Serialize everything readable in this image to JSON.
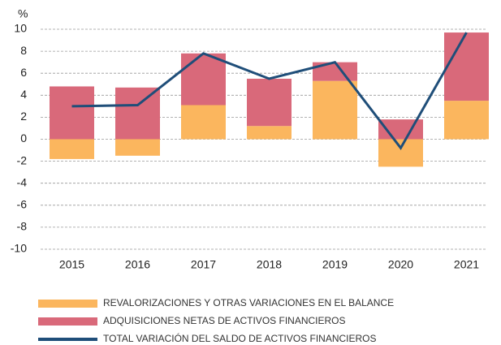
{
  "chart_data": {
    "type": "bar",
    "stacked": true,
    "y_unit": "%",
    "categories": [
      "2015",
      "2016",
      "2017",
      "2018",
      "2019",
      "2020",
      "2021"
    ],
    "series": [
      {
        "name": "REVALORIZACIONES Y OTRAS VARIACIONES EN EL BALANCE",
        "color": "#fbb65e",
        "type": "bar",
        "values": [
          -1.8,
          -1.5,
          3.1,
          1.2,
          5.3,
          -2.5,
          3.5
        ]
      },
      {
        "name": "ADQUISICIONES NETAS DE ACTIVOS FINANCIEROS",
        "color": "#d9697a",
        "type": "bar",
        "values": [
          4.8,
          4.7,
          4.7,
          4.3,
          1.7,
          1.8,
          6.2
        ]
      },
      {
        "name": "TOTAL VARIACIÓN DEL SALDO DE ACTIVOS FINANCIEROS",
        "color": "#1f4e79",
        "type": "line",
        "values": [
          3.0,
          3.1,
          7.8,
          5.5,
          7.0,
          -0.8,
          9.7
        ]
      }
    ],
    "ylim": [
      -10,
      10
    ],
    "yticks": [
      -10,
      -8,
      -6,
      -4,
      -2,
      0,
      2,
      4,
      6,
      8,
      10
    ],
    "grid": true
  }
}
